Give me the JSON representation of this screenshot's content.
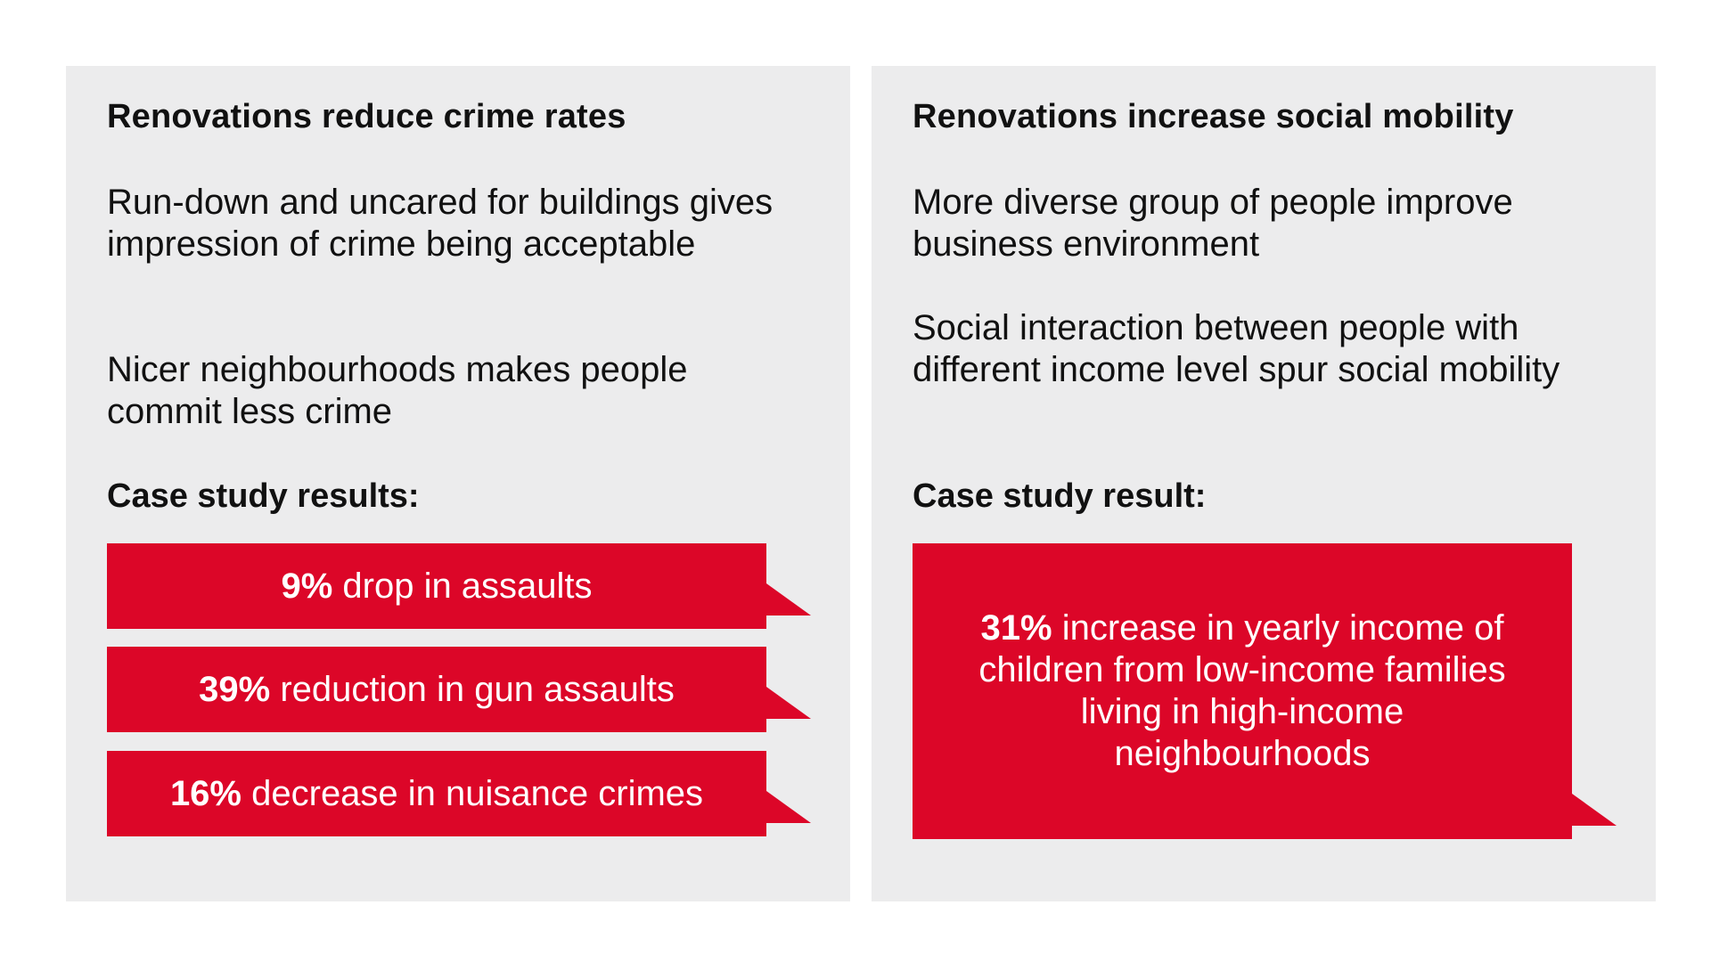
{
  "left_panel": {
    "title": "Renovations reduce crime rates",
    "paragraphs": [
      "Run-down and uncared for buildings gives impression of crime being acceptable",
      "Nicer neighbourhoods makes people commit less crime"
    ],
    "results_label": "Case study results:",
    "results": [
      {
        "value": "9%",
        "text": "drop in assaults"
      },
      {
        "value": "39%",
        "text": "reduction in gun assaults"
      },
      {
        "value": "16%",
        "text": "decrease in nuisance crimes"
      }
    ]
  },
  "right_panel": {
    "title": "Renovations increase social mobility",
    "paragraphs": [
      "More diverse group of people improve business environment",
      "Social interaction between people with different income level spur social mobility"
    ],
    "results_label": "Case study result:",
    "result": {
      "value": "31%",
      "text": "increase in yearly income of children from low-income families living in high-income neighbourhoods"
    }
  },
  "colors": {
    "panel_bg": "#ececed",
    "accent_red": "#dc0628",
    "text": "#111111"
  }
}
